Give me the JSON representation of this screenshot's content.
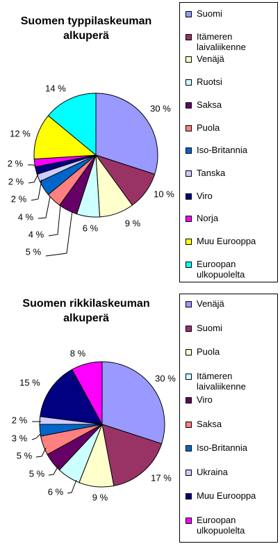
{
  "chart_data": [
    {
      "type": "pie",
      "title": [
        "Suomen typpilaskeuman",
        "alkuperä"
      ],
      "series": [
        {
          "name": "Suomi",
          "value": 30,
          "label": "30 %",
          "color": "#9999ff"
        },
        {
          "name": [
            "Itämeren",
            "laivaliikenne"
          ],
          "value": 10,
          "label": "10 %",
          "color": "#993366"
        },
        {
          "name": "Venäjä",
          "value": 9,
          "label": "9 %",
          "color": "#ffffcc"
        },
        {
          "name": "Ruotsi",
          "value": 6,
          "label": "6 %",
          "color": "#ccffff"
        },
        {
          "name": "Saksa",
          "value": 5,
          "label": "5 %",
          "color": "#660066"
        },
        {
          "name": "Puola",
          "value": 4,
          "label": "4 %",
          "color": "#ff8080"
        },
        {
          "name": "Iso-Britannia",
          "value": 4,
          "label": "4 %",
          "color": "#0066cc"
        },
        {
          "name": "Tanska",
          "value": 2,
          "label": "2 %",
          "color": "#ccccff"
        },
        {
          "name": "Viro",
          "value": 2,
          "label": "2 %",
          "color": "#000080"
        },
        {
          "name": "Norja",
          "value": 2,
          "label": "2 %",
          "color": "#ff00ff"
        },
        {
          "name": "Muu Eurooppa",
          "value": 12,
          "label": "12 %",
          "color": "#ffff00"
        },
        {
          "name": [
            "Euroopan",
            "ulkopuolelta"
          ],
          "value": 14,
          "label": "14 %",
          "color": "#00ffff"
        }
      ],
      "legend_position": "right"
    },
    {
      "type": "pie",
      "title": [
        "Suomen rikkilaskeuman",
        "alkuperä"
      ],
      "series": [
        {
          "name": "Venäjä",
          "value": 30,
          "label": "30 %",
          "color": "#9999ff"
        },
        {
          "name": "Suomi",
          "value": 17,
          "label": "17 %",
          "color": "#993366"
        },
        {
          "name": "Puola",
          "value": 9,
          "label": "9 %",
          "color": "#ffffcc"
        },
        {
          "name": [
            "Itämeren",
            "laivaliikenne"
          ],
          "value": 6,
          "label": "6 %",
          "color": "#ccffff"
        },
        {
          "name": "Viro",
          "value": 5,
          "label": "5 %",
          "color": "#660066"
        },
        {
          "name": "Saksa",
          "value": 5,
          "label": "5 %",
          "color": "#ff8080"
        },
        {
          "name": "Iso-Britannia",
          "value": 3,
          "label": "3 %",
          "color": "#0066cc"
        },
        {
          "name": "Ukraina",
          "value": 2,
          "label": "2 %",
          "color": "#ccccff"
        },
        {
          "name": "Muu Eurooppa",
          "value": 15,
          "label": "15 %",
          "color": "#000080"
        },
        {
          "name": [
            "Euroopan",
            "ulkopuolelta"
          ],
          "value": 8,
          "label": "8 %",
          "color": "#ff00ff"
        }
      ],
      "legend_position": "right"
    }
  ]
}
